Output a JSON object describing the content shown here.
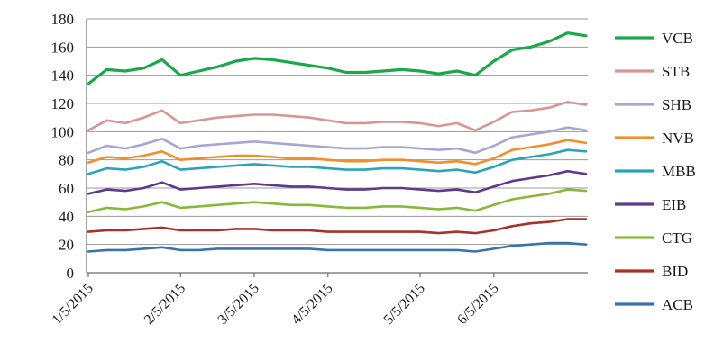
{
  "chart_data": {
    "type": "line",
    "title": "",
    "xlabel": "",
    "ylabel": "",
    "ylim": [
      0,
      180
    ],
    "yticks": [
      0,
      20,
      40,
      60,
      80,
      100,
      120,
      140,
      160,
      180
    ],
    "xtick_labels": [
      "1/5/2015",
      "2/5/2015",
      "3/5/2015",
      "4/5/2015",
      "5/5/2015",
      "6/5/2015"
    ],
    "grid": true,
    "legend_position": "right",
    "x": [
      "1/5/2015",
      "1/12/2015",
      "1/19/2015",
      "1/26/2015",
      "2/2/2015",
      "2/5/2015",
      "2/9/2015",
      "2/16/2015",
      "2/23/2015",
      "3/2/2015",
      "3/9/2015",
      "3/16/2015",
      "3/23/2015",
      "3/30/2015",
      "4/6/2015",
      "4/13/2015",
      "4/20/2015",
      "4/27/2015",
      "5/4/2015",
      "5/11/2015",
      "5/18/2015",
      "5/25/2015",
      "6/1/2015",
      "6/8/2015",
      "6/15/2015",
      "6/22/2015",
      "6/29/2015",
      "7/6/2015"
    ],
    "series": [
      {
        "name": "VCB",
        "color": "#1aa84a",
        "values": [
          134,
          144,
          143,
          145,
          151,
          140,
          143,
          146,
          150,
          152,
          151,
          149,
          147,
          145,
          142,
          142,
          143,
          144,
          143,
          141,
          143,
          140,
          150,
          158,
          160,
          164,
          170,
          168
        ]
      },
      {
        "name": "STB",
        "color": "#d99594",
        "values": [
          101,
          108,
          106,
          110,
          115,
          106,
          108,
          110,
          111,
          112,
          112,
          111,
          110,
          108,
          106,
          106,
          107,
          107,
          106,
          104,
          106,
          101,
          107,
          114,
          115,
          117,
          121,
          119
        ]
      },
      {
        "name": "SHB",
        "color": "#a6a6d2",
        "values": [
          85,
          90,
          88,
          91,
          95,
          88,
          90,
          91,
          92,
          93,
          92,
          91,
          90,
          89,
          88,
          88,
          89,
          89,
          88,
          87,
          88,
          85,
          90,
          96,
          98,
          100,
          103,
          101
        ]
      },
      {
        "name": "NVB",
        "color": "#f0902a",
        "values": [
          78,
          82,
          81,
          83,
          86,
          80,
          81,
          82,
          83,
          83,
          82,
          81,
          81,
          80,
          79,
          79,
          80,
          80,
          79,
          78,
          79,
          77,
          81,
          87,
          89,
          91,
          94,
          92
        ]
      },
      {
        "name": "MBB",
        "color": "#2aa5b8",
        "values": [
          70,
          74,
          73,
          75,
          79,
          73,
          74,
          75,
          76,
          77,
          76,
          75,
          75,
          74,
          73,
          73,
          74,
          74,
          73,
          72,
          73,
          71,
          75,
          80,
          82,
          84,
          87,
          86
        ]
      },
      {
        "name": "EIB",
        "color": "#5e3a8c",
        "values": [
          56,
          59,
          58,
          60,
          64,
          59,
          60,
          61,
          62,
          63,
          62,
          61,
          61,
          60,
          59,
          59,
          60,
          60,
          59,
          58,
          59,
          57,
          61,
          65,
          67,
          69,
          72,
          70
        ]
      },
      {
        "name": "CTG",
        "color": "#8ab63a",
        "values": [
          43,
          46,
          45,
          47,
          50,
          46,
          47,
          48,
          49,
          50,
          49,
          48,
          48,
          47,
          46,
          46,
          47,
          47,
          46,
          45,
          46,
          44,
          48,
          52,
          54,
          56,
          59,
          58
        ]
      },
      {
        "name": "BID",
        "color": "#a8322a",
        "values": [
          29,
          30,
          30,
          31,
          32,
          30,
          30,
          30,
          31,
          31,
          30,
          30,
          30,
          29,
          29,
          29,
          29,
          29,
          29,
          28,
          29,
          28,
          30,
          33,
          35,
          36,
          38,
          38
        ]
      },
      {
        "name": "ACB",
        "color": "#3a72b0",
        "values": [
          15,
          16,
          16,
          17,
          18,
          16,
          16,
          17,
          17,
          17,
          17,
          17,
          17,
          16,
          16,
          16,
          16,
          16,
          16,
          16,
          16,
          15,
          17,
          19,
          20,
          21,
          21,
          20
        ]
      }
    ]
  }
}
